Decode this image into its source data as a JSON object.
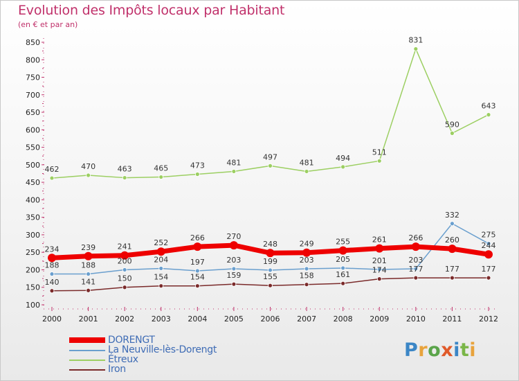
{
  "title": "Evolution des Impôts locaux par Habitant",
  "subtitle": "(en € et par an)",
  "logo": [
    "P",
    "r",
    "o",
    "x",
    "i",
    "t",
    "i"
  ],
  "colors": {
    "title": "#c0306a",
    "axis_text": "#222222",
    "logo": [
      "#3b86c6",
      "#e8a33c",
      "#5aa44a",
      "#e05a2a",
      "#3b86c6",
      "#7ab648",
      "#e8a33c"
    ]
  },
  "chart_data": {
    "type": "line",
    "title": "Evolution des Impôts locaux par Habitant",
    "subtitle": "(en € et par an)",
    "xlabel": "",
    "ylabel": "",
    "x": [
      "2000",
      "2001",
      "2002",
      "2003",
      "2004",
      "2005",
      "2006",
      "2007",
      "2008",
      "2009",
      "2010",
      "2011",
      "2012"
    ],
    "ylim": [
      100,
      850
    ],
    "yticks": [
      100,
      150,
      200,
      250,
      300,
      350,
      400,
      450,
      500,
      550,
      600,
      650,
      700,
      750,
      800,
      850
    ],
    "grid": false,
    "legend_position": "bottom-left",
    "series": [
      {
        "name": "DORENGT",
        "color": "#ee0000",
        "values": [
          234,
          239,
          241,
          252,
          266,
          270,
          248,
          249,
          255,
          261,
          266,
          260,
          244
        ]
      },
      {
        "name": "La Neuville-lès-Dorengt",
        "color": "#6a9fce",
        "values": [
          188,
          188,
          200,
          204,
          197,
          203,
          199,
          203,
          205,
          201,
          203,
          332,
          275
        ]
      },
      {
        "name": "Étreux",
        "color": "#9ccf62",
        "values": [
          462,
          470,
          463,
          465,
          473,
          481,
          497,
          481,
          494,
          511,
          831,
          590,
          643
        ]
      },
      {
        "name": "Iron",
        "color": "#7a2a2a",
        "values": [
          140,
          141,
          150,
          154,
          154,
          159,
          155,
          158,
          161,
          174,
          177,
          177,
          177
        ]
      }
    ]
  }
}
